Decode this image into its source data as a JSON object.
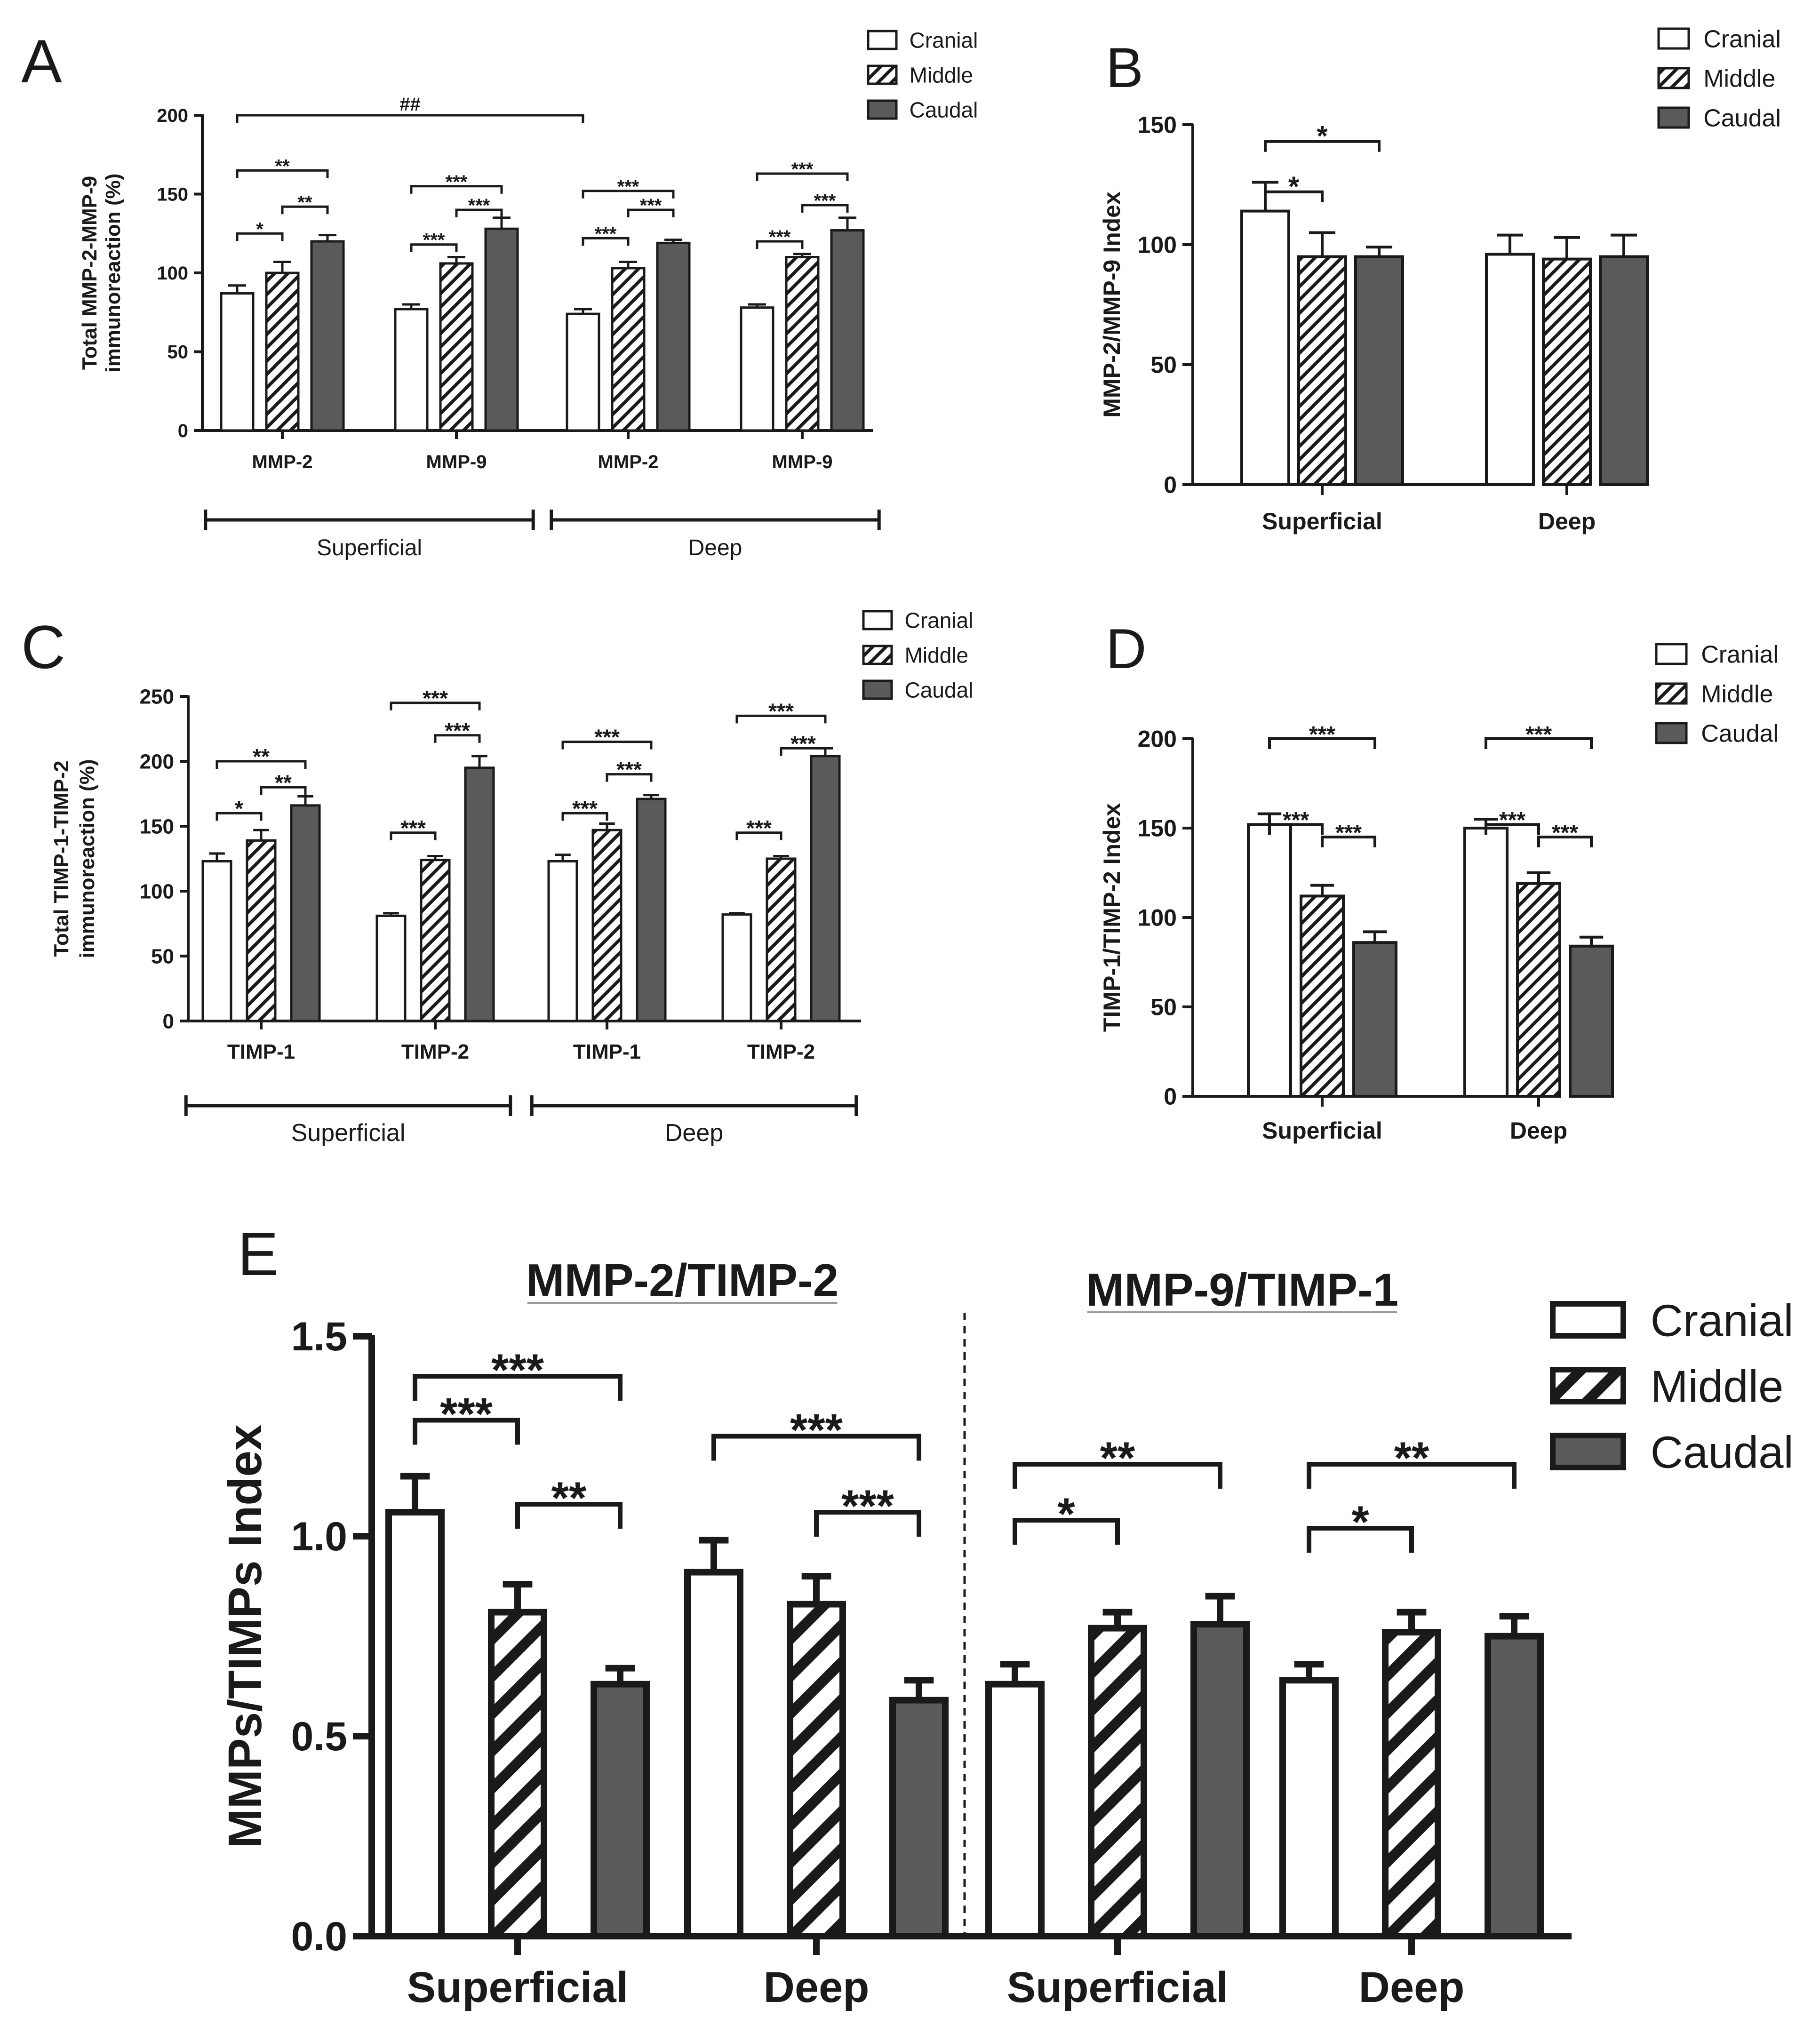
{
  "colors": {
    "cranial": "#ffffff",
    "middle": "hatch",
    "caudal": "#5a5a5a",
    "stroke": "#1a1a1a"
  },
  "chart_data": [
    {
      "panel": "A",
      "type": "bar",
      "ylabel_lines": [
        "Total MMP-2-MMP-9",
        "immunoreaction (%)"
      ],
      "ylim": [
        0,
        200
      ],
      "yticks": [
        0,
        50,
        100,
        150,
        200
      ],
      "categories": [
        "MMP-2",
        "MMP-9",
        "MMP-2",
        "MMP-9"
      ],
      "groups": [
        {
          "label": "Superficial",
          "span": [
            0,
            1
          ]
        },
        {
          "label": "Deep",
          "span": [
            2,
            3
          ]
        }
      ],
      "legend": [
        "Cranial",
        "Middle",
        "Caudal"
      ],
      "legend_position": "top-right",
      "series": [
        {
          "name": "Cranial",
          "values": [
            87,
            77,
            74,
            78
          ],
          "errors": [
            5,
            3,
            3,
            2
          ]
        },
        {
          "name": "Middle",
          "values": [
            100,
            106,
            103,
            110
          ],
          "errors": [
            7,
            4,
            4,
            2
          ]
        },
        {
          "name": "Caudal",
          "values": [
            120,
            128,
            119,
            127
          ],
          "errors": [
            4,
            7,
            2,
            8
          ]
        }
      ],
      "significance": [
        {
          "from": [
            0,
            0
          ],
          "to": [
            0,
            1
          ],
          "label": "*"
        },
        {
          "from": [
            0,
            0
          ],
          "to": [
            0,
            2
          ],
          "label": "**"
        },
        {
          "from": [
            0,
            1
          ],
          "to": [
            0,
            2
          ],
          "label": "**"
        },
        {
          "from": [
            1,
            0
          ],
          "to": [
            1,
            1
          ],
          "label": "***"
        },
        {
          "from": [
            1,
            0
          ],
          "to": [
            1,
            2
          ],
          "label": "***"
        },
        {
          "from": [
            1,
            1
          ],
          "to": [
            1,
            2
          ],
          "label": "***"
        },
        {
          "from": [
            2,
            0
          ],
          "to": [
            2,
            1
          ],
          "label": "***"
        },
        {
          "from": [
            2,
            0
          ],
          "to": [
            2,
            2
          ],
          "label": "***"
        },
        {
          "from": [
            2,
            1
          ],
          "to": [
            2,
            2
          ],
          "label": "***"
        },
        {
          "from": [
            3,
            0
          ],
          "to": [
            3,
            1
          ],
          "label": "***"
        },
        {
          "from": [
            3,
            0
          ],
          "to": [
            3,
            2
          ],
          "label": "***"
        },
        {
          "from": [
            3,
            1
          ],
          "to": [
            3,
            2
          ],
          "label": "***"
        },
        {
          "from": [
            0,
            0
          ],
          "to": [
            2,
            0
          ],
          "label": "##",
          "level": 200
        }
      ]
    },
    {
      "panel": "B",
      "type": "bar",
      "ylabel_lines": [
        "MMP-2/MMP-9 Index"
      ],
      "ylim": [
        0,
        150
      ],
      "yticks": [
        0,
        50,
        100,
        150
      ],
      "categories": [
        "Superficial",
        "Deep"
      ],
      "legend": [
        "Cranial",
        "Middle",
        "Caudal"
      ],
      "legend_position": "top-right",
      "series": [
        {
          "name": "Cranial",
          "values": [
            114,
            96
          ],
          "errors": [
            12,
            8
          ]
        },
        {
          "name": "Middle",
          "values": [
            95,
            94
          ],
          "errors": [
            10,
            9
          ]
        },
        {
          "name": "Caudal",
          "values": [
            95,
            95
          ],
          "errors": [
            4,
            9
          ]
        }
      ],
      "significance": [
        {
          "from": [
            0,
            0
          ],
          "to": [
            0,
            1
          ],
          "label": "*"
        },
        {
          "from": [
            0,
            0
          ],
          "to": [
            0,
            2
          ],
          "label": "*"
        }
      ]
    },
    {
      "panel": "C",
      "type": "bar",
      "ylabel_lines": [
        "Total TIMP-1-TIMP-2",
        "immunoreaction (%)"
      ],
      "ylim": [
        0,
        250
      ],
      "yticks": [
        0,
        50,
        100,
        150,
        200,
        250
      ],
      "categories": [
        "TIMP-1",
        "TIMP-2",
        "TIMP-1",
        "TIMP-2"
      ],
      "groups": [
        {
          "label": "Superficial",
          "span": [
            0,
            1
          ]
        },
        {
          "label": "Deep",
          "span": [
            2,
            3
          ]
        }
      ],
      "legend": [
        "Cranial",
        "Middle",
        "Caudal"
      ],
      "legend_position": "top-right",
      "series": [
        {
          "name": "Cranial",
          "values": [
            123,
            81,
            123,
            82
          ],
          "errors": [
            6,
            2,
            5,
            1
          ]
        },
        {
          "name": "Middle",
          "values": [
            139,
            124,
            147,
            125
          ],
          "errors": [
            8,
            3,
            5,
            2
          ]
        },
        {
          "name": "Caudal",
          "values": [
            166,
            195,
            171,
            204
          ],
          "errors": [
            7,
            9,
            3,
            6
          ]
        }
      ],
      "significance": [
        {
          "from": [
            0,
            0
          ],
          "to": [
            0,
            1
          ],
          "label": "*"
        },
        {
          "from": [
            0,
            0
          ],
          "to": [
            0,
            2
          ],
          "label": "**"
        },
        {
          "from": [
            0,
            1
          ],
          "to": [
            0,
            2
          ],
          "label": "**"
        },
        {
          "from": [
            1,
            0
          ],
          "to": [
            1,
            1
          ],
          "label": "***"
        },
        {
          "from": [
            1,
            0
          ],
          "to": [
            1,
            2
          ],
          "label": "***"
        },
        {
          "from": [
            1,
            1
          ],
          "to": [
            1,
            2
          ],
          "label": "***"
        },
        {
          "from": [
            2,
            0
          ],
          "to": [
            2,
            1
          ],
          "label": "***"
        },
        {
          "from": [
            2,
            0
          ],
          "to": [
            2,
            2
          ],
          "label": "***"
        },
        {
          "from": [
            2,
            1
          ],
          "to": [
            2,
            2
          ],
          "label": "***"
        },
        {
          "from": [
            3,
            0
          ],
          "to": [
            3,
            1
          ],
          "label": "***"
        },
        {
          "from": [
            3,
            0
          ],
          "to": [
            3,
            2
          ],
          "label": "***"
        },
        {
          "from": [
            3,
            1
          ],
          "to": [
            3,
            2
          ],
          "label": "***"
        }
      ]
    },
    {
      "panel": "D",
      "type": "bar",
      "ylabel_lines": [
        "TIMP-1/TIMP-2 Index"
      ],
      "ylim": [
        0,
        200
      ],
      "yticks": [
        0,
        50,
        100,
        150,
        200
      ],
      "categories": [
        "Superficial",
        "Deep"
      ],
      "legend": [
        "Cranial",
        "Middle",
        "Caudal"
      ],
      "legend_position": "top-right",
      "series": [
        {
          "name": "Cranial",
          "values": [
            152,
            150
          ],
          "errors": [
            6,
            5
          ]
        },
        {
          "name": "Middle",
          "values": [
            112,
            119
          ],
          "errors": [
            6,
            6
          ]
        },
        {
          "name": "Caudal",
          "values": [
            86,
            84
          ],
          "errors": [
            6,
            5
          ]
        }
      ],
      "significance": [
        {
          "from": [
            0,
            0
          ],
          "to": [
            0,
            1
          ],
          "label": "***"
        },
        {
          "from": [
            0,
            0
          ],
          "to": [
            0,
            2
          ],
          "label": "***"
        },
        {
          "from": [
            0,
            1
          ],
          "to": [
            0,
            2
          ],
          "label": "***"
        },
        {
          "from": [
            1,
            0
          ],
          "to": [
            1,
            1
          ],
          "label": "***"
        },
        {
          "from": [
            1,
            0
          ],
          "to": [
            1,
            2
          ],
          "label": "***"
        },
        {
          "from": [
            1,
            1
          ],
          "to": [
            1,
            2
          ],
          "label": "***"
        }
      ]
    },
    {
      "panel": "E",
      "type": "bar",
      "ylabel_lines": [
        "MMPs/TIMPs Index"
      ],
      "ylim": [
        0,
        1.5
      ],
      "yticks": [
        "0.0",
        "0.5",
        "1.0",
        "1.5"
      ],
      "categories": [
        "Superficial",
        "Deep",
        "Superficial",
        "Deep"
      ],
      "section_titles": [
        "MMP-2/TIMP-2",
        "MMP-9/TIMP-1"
      ],
      "legend": [
        "Cranial",
        "Middle",
        "Caudal"
      ],
      "legend_position": "top-right",
      "series": [
        {
          "name": "Cranial",
          "values": [
            1.06,
            0.91,
            0.63,
            0.64
          ],
          "errors": [
            0.09,
            0.08,
            0.05,
            0.04
          ]
        },
        {
          "name": "Middle",
          "values": [
            0.81,
            0.83,
            0.77,
            0.76
          ],
          "errors": [
            0.07,
            0.07,
            0.04,
            0.05
          ]
        },
        {
          "name": "Caudal",
          "values": [
            0.63,
            0.59,
            0.78,
            0.75
          ],
          "errors": [
            0.04,
            0.05,
            0.07,
            0.05
          ]
        }
      ],
      "significance": [
        {
          "from": [
            0,
            0
          ],
          "to": [
            0,
            1
          ],
          "label": "***"
        },
        {
          "from": [
            0,
            0
          ],
          "to": [
            0,
            2
          ],
          "label": "***"
        },
        {
          "from": [
            0,
            1
          ],
          "to": [
            0,
            2
          ],
          "label": "**"
        },
        {
          "from": [
            1,
            0
          ],
          "to": [
            1,
            2
          ],
          "label": "***"
        },
        {
          "from": [
            1,
            1
          ],
          "to": [
            1,
            2
          ],
          "label": "***"
        },
        {
          "from": [
            2,
            0
          ],
          "to": [
            2,
            1
          ],
          "label": "*"
        },
        {
          "from": [
            2,
            0
          ],
          "to": [
            2,
            2
          ],
          "label": "**"
        },
        {
          "from": [
            3,
            0
          ],
          "to": [
            3,
            1
          ],
          "label": "*"
        },
        {
          "from": [
            3,
            0
          ],
          "to": [
            3,
            2
          ],
          "label": "**"
        }
      ]
    }
  ]
}
